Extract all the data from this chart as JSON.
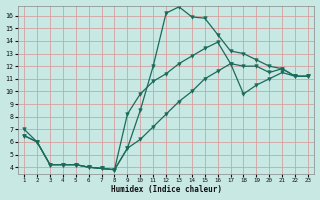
{
  "xlabel": "Humidex (Indice chaleur)",
  "bg_color": "#c8e8e4",
  "grid_color": "#d4a0a0",
  "line_color": "#1a6b5a",
  "spine_color": "#888888",
  "xlim_min": 0.5,
  "xlim_max": 23.5,
  "ylim_min": 3.5,
  "ylim_max": 16.8,
  "xticks": [
    1,
    2,
    3,
    4,
    5,
    6,
    7,
    8,
    9,
    10,
    11,
    12,
    13,
    14,
    15,
    16,
    17,
    18,
    19,
    20,
    21,
    22,
    23
  ],
  "yticks": [
    4,
    5,
    6,
    7,
    8,
    9,
    10,
    11,
    12,
    13,
    14,
    15,
    16
  ],
  "curve1_x": [
    1,
    2,
    3,
    4,
    5,
    6,
    7,
    8,
    9,
    10,
    11,
    12,
    13,
    14,
    15,
    16,
    17,
    18,
    19,
    20,
    21,
    22,
    23
  ],
  "curve1_y": [
    6.5,
    6.0,
    4.2,
    4.2,
    4.2,
    4.0,
    3.9,
    3.8,
    5.5,
    8.5,
    12.0,
    16.2,
    16.7,
    15.9,
    15.8,
    14.5,
    13.2,
    13.0,
    12.5,
    12.0,
    11.8,
    11.2,
    11.2
  ],
  "curve2_x": [
    1,
    2,
    3,
    4,
    5,
    6,
    7,
    8,
    9,
    10,
    11,
    12,
    13,
    14,
    15,
    16,
    17,
    18,
    19,
    20,
    21,
    22,
    23
  ],
  "curve2_y": [
    6.5,
    6.0,
    4.2,
    4.2,
    4.2,
    4.0,
    3.9,
    3.8,
    8.2,
    9.8,
    10.8,
    11.4,
    12.2,
    12.8,
    13.4,
    13.9,
    12.2,
    12.0,
    12.0,
    11.5,
    11.8,
    11.2,
    11.2
  ],
  "curve3_x": [
    1,
    2,
    3,
    4,
    5,
    6,
    7,
    8,
    9,
    10,
    11,
    12,
    13,
    14,
    15,
    16,
    17,
    18,
    19,
    20,
    21,
    22,
    23
  ],
  "curve3_y": [
    7.0,
    6.0,
    4.2,
    4.2,
    4.2,
    4.0,
    3.9,
    3.8,
    5.5,
    6.2,
    7.2,
    8.2,
    9.2,
    10.0,
    11.0,
    11.6,
    12.2,
    9.8,
    10.5,
    11.0,
    11.5,
    11.2,
    11.2
  ]
}
